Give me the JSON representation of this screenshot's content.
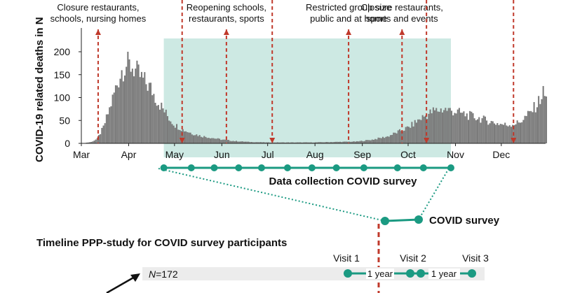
{
  "chart_data": {
    "type": "bar",
    "title": "",
    "ylabel": "COVID-19 related deaths in N",
    "xlabel": "",
    "ylim": [
      0,
      250
    ],
    "yticks": [
      0,
      50,
      100,
      150,
      200
    ],
    "x_range": [
      0,
      304
    ],
    "month_ticks": [
      {
        "label": "Mar",
        "day": 0
      },
      {
        "label": "Apr",
        "day": 31
      },
      {
        "label": "May",
        "day": 61
      },
      {
        "label": "Jun",
        "day": 92
      },
      {
        "label": "Jul",
        "day": 122
      },
      {
        "label": "Aug",
        "day": 153
      },
      {
        "label": "Sep",
        "day": 184
      },
      {
        "label": "Oct",
        "day": 214
      },
      {
        "label": "Nov",
        "day": 245
      },
      {
        "label": "Dec",
        "day": 275
      }
    ],
    "daily_deaths_anchors": [
      {
        "day": 0,
        "value": 0
      },
      {
        "day": 6,
        "value": 3
      },
      {
        "day": 10,
        "value": 10
      },
      {
        "day": 14,
        "value": 35
      },
      {
        "day": 18,
        "value": 75
      },
      {
        "day": 22,
        "value": 120
      },
      {
        "day": 26,
        "value": 160
      },
      {
        "day": 29,
        "value": 172
      },
      {
        "day": 33,
        "value": 168
      },
      {
        "day": 37,
        "value": 150
      },
      {
        "day": 41,
        "value": 135
      },
      {
        "day": 45,
        "value": 120
      },
      {
        "day": 49,
        "value": 95
      },
      {
        "day": 53,
        "value": 75
      },
      {
        "day": 57,
        "value": 55
      },
      {
        "day": 61,
        "value": 40
      },
      {
        "day": 66,
        "value": 30
      },
      {
        "day": 72,
        "value": 22
      },
      {
        "day": 78,
        "value": 16
      },
      {
        "day": 85,
        "value": 12
      },
      {
        "day": 92,
        "value": 8
      },
      {
        "day": 100,
        "value": 5
      },
      {
        "day": 110,
        "value": 3
      },
      {
        "day": 122,
        "value": 2
      },
      {
        "day": 135,
        "value": 2
      },
      {
        "day": 150,
        "value": 2
      },
      {
        "day": 165,
        "value": 3
      },
      {
        "day": 180,
        "value": 4
      },
      {
        "day": 190,
        "value": 8
      },
      {
        "day": 200,
        "value": 15
      },
      {
        "day": 207,
        "value": 25
      },
      {
        "day": 214,
        "value": 35
      },
      {
        "day": 222,
        "value": 55
      },
      {
        "day": 230,
        "value": 70
      },
      {
        "day": 237,
        "value": 75
      },
      {
        "day": 244,
        "value": 70
      },
      {
        "day": 252,
        "value": 62
      },
      {
        "day": 260,
        "value": 55
      },
      {
        "day": 270,
        "value": 45
      },
      {
        "day": 278,
        "value": 40
      },
      {
        "day": 286,
        "value": 45
      },
      {
        "day": 293,
        "value": 65
      },
      {
        "day": 298,
        "value": 85
      },
      {
        "day": 302,
        "value": 110
      },
      {
        "day": 304,
        "value": 100
      }
    ],
    "survey_period": {
      "start_day": 54,
      "end_day": 242,
      "label": "Data collection COVID survey"
    },
    "survey_markers_days": [
      54,
      72,
      87,
      103,
      118,
      135,
      151,
      167,
      185,
      207,
      224,
      242
    ],
    "measure_events": [
      {
        "day": 11,
        "label_lines": [
          "Closure restaurants,",
          "schools, nursing homes"
        ]
      },
      {
        "day": 66,
        "label_lines": []
      },
      {
        "day": 95,
        "label_lines": [
          "Reopening schools,",
          "restaurants, sports"
        ]
      },
      {
        "day": 125,
        "label_lines": []
      },
      {
        "day": 175,
        "label_lines": [
          "Restricted group size",
          "public and at home"
        ]
      },
      {
        "day": 210,
        "label_lines": [
          "Closure restaurants,",
          "sports and events"
        ]
      },
      {
        "day": 226,
        "label_lines": []
      },
      {
        "day": 283,
        "label_lines": []
      }
    ]
  },
  "zoom_label": "COVID survey",
  "timeline": {
    "title": "Timeline PPP-study for COVID survey participants",
    "n_label_prefix": "N",
    "n_label_value": "=172",
    "visits": [
      "Visit 1",
      "Visit 2",
      "Visit 3"
    ],
    "intervals": [
      "1 year",
      "1 year"
    ]
  },
  "colors": {
    "bars": "#7a7a7a",
    "survey_band": "#cde9e3",
    "teal": "#1b9a82",
    "event_line": "#c0392b",
    "timeline_band": "#ececec",
    "axis": "#222222"
  }
}
